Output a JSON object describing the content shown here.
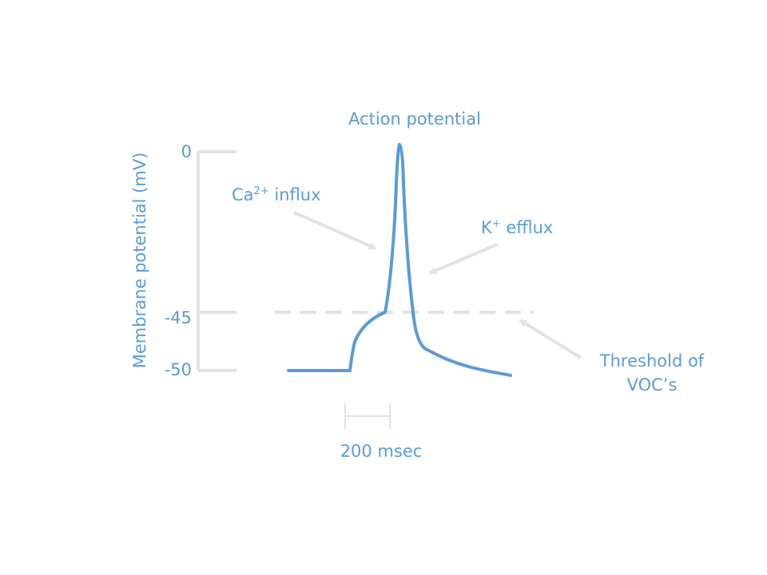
{
  "colors": {
    "trace": "#5b9bd5",
    "text": "#5b9bd5",
    "axis": "#e3e3e3",
    "arrow": "#e3e3e3",
    "threshold": "#e3e3e3"
  },
  "labels": {
    "action_potential": "Action potential",
    "ca_base": "Ca",
    "ca_sup": "2+",
    "ca_rest": " influx",
    "k_base": "K",
    "k_sup": "+",
    "k_rest": " efflux",
    "threshold_line1": "Threshold of",
    "threshold_line2": "VOC’s",
    "ylabel": "Membrane potential (mV)",
    "scalebar": "200 msec"
  },
  "ticks": [
    "0",
    "-45",
    "-50"
  ]
}
